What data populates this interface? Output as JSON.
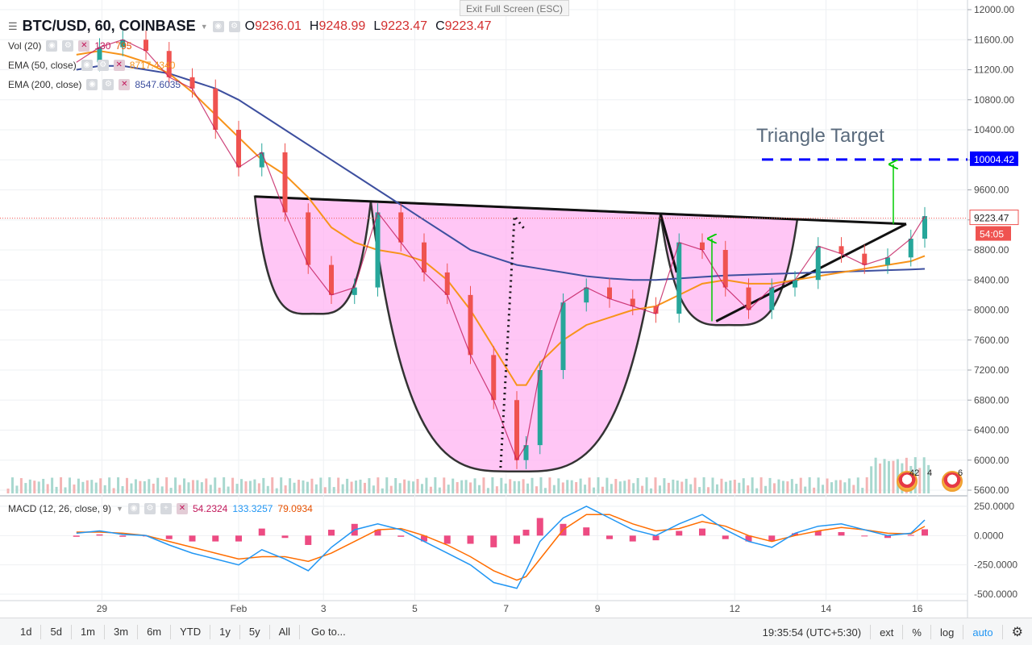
{
  "window": {
    "exit_hint": "Exit Full Screen (ESC)"
  },
  "legend": {
    "symbol": "BTC/USD, 60, COINBASE",
    "ohlc": [
      {
        "label": "O",
        "value": "9236.01"
      },
      {
        "label": "H",
        "value": "9248.99"
      },
      {
        "label": "L",
        "value": "9223.47"
      },
      {
        "label": "C",
        "value": "9223.47"
      }
    ],
    "vol": {
      "label": "Vol (20)",
      "v1": "130",
      "v2": "795"
    },
    "ema50": {
      "label": "EMA (50, close)",
      "value": "8717.4340"
    },
    "ema200": {
      "label": "EMA (200, close)",
      "value": "8547.6035"
    },
    "macd": {
      "label": "MACD (12, 26, close, 9)",
      "hist": "54.2324",
      "macd": "133.3257",
      "signal": "79.0934"
    }
  },
  "colors": {
    "up": "#26a69a",
    "down": "#ef5350",
    "ema50": "#f7931a",
    "ema200": "#3d4f9f",
    "pattern_fill": "#ffb3f2",
    "target": "#0000ff",
    "arrow": "#00cc00",
    "macd_line": "#2196f3",
    "signal_line": "#ff6d00",
    "hist": "#e91e63"
  },
  "chart_data": {
    "type": "line",
    "title": "BTC/USD, 60, COINBASE",
    "x_ticks": [
      "29",
      "Feb",
      "3",
      "5",
      "7",
      "9",
      "12",
      "14",
      "16"
    ],
    "price_axis": {
      "ticks": [
        "12000.00",
        "11600.00",
        "11200.00",
        "10800.00",
        "10400.00",
        "10000.00",
        "9600.00",
        "9200.00",
        "8800.00",
        "8400.00",
        "8000.00",
        "7600.00",
        "7200.00",
        "6800.00",
        "6400.00",
        "6000.00",
        "5600.00"
      ],
      "range": [
        5600,
        12000
      ],
      "last_price": "9223.47",
      "countdown": "54:05",
      "target_price": "10004.42"
    },
    "macd_axis": {
      "ticks": [
        "250.0000",
        "0.0000",
        "-250.0000",
        "-500.0000"
      ],
      "range": [
        -500,
        250
      ]
    },
    "annotation": "Triangle Target",
    "price_path_days": [
      -3.5,
      -3,
      -2.5,
      -2,
      -1.5,
      -1,
      -0.5,
      0,
      0.5,
      1,
      1.5,
      2,
      2.5,
      3,
      3.5,
      4,
      4.5,
      5,
      5.5,
      6,
      6.2,
      6.5,
      7,
      7.5,
      8,
      8.5,
      9,
      9.5,
      10,
      10.5,
      11,
      11.5,
      12,
      12.5,
      13,
      13.5,
      14,
      14.5,
      14.8
    ],
    "price_path_values": [
      11300,
      11500,
      11600,
      11450,
      11100,
      10950,
      10400,
      9900,
      10100,
      9300,
      8600,
      8200,
      8300,
      9300,
      8900,
      8500,
      8200,
      7400,
      6800,
      6000,
      6200,
      7200,
      8100,
      8300,
      8150,
      8050,
      7950,
      8900,
      8800,
      8300,
      8000,
      8300,
      8400,
      8850,
      8750,
      8600,
      8700,
      8950,
      9250
    ],
    "ema50_values": [
      11400,
      11450,
      11400,
      11300,
      11150,
      10900,
      10600,
      10300,
      10000,
      9800,
      9500,
      9100,
      8900,
      8800,
      8750,
      8650,
      8400,
      8000,
      7500,
      7000,
      7000,
      7300,
      7600,
      7800,
      7900,
      8000,
      8050,
      8200,
      8350,
      8400,
      8350,
      8350,
      8400,
      8450,
      8500,
      8550,
      8600,
      8650,
      8720
    ],
    "ema200_values": [
      11200,
      11250,
      11250,
      11200,
      11150,
      11050,
      10950,
      10800,
      10600,
      10400,
      10200,
      10000,
      9800,
      9600,
      9400,
      9200,
      9000,
      8800,
      8700,
      8600,
      8580,
      8550,
      8500,
      8450,
      8420,
      8400,
      8400,
      8420,
      8440,
      8460,
      8470,
      8480,
      8490,
      8500,
      8510,
      8520,
      8530,
      8540,
      8548
    ],
    "macd_values": [
      20,
      40,
      10,
      0,
      -80,
      -150,
      -200,
      -250,
      -120,
      -200,
      -300,
      -100,
      50,
      100,
      50,
      -50,
      -150,
      -250,
      -400,
      -450,
      -300,
      -50,
      150,
      250,
      150,
      50,
      0,
      100,
      180,
      50,
      -50,
      -100,
      20,
      80,
      100,
      50,
      0,
      20,
      133
    ],
    "signal_values": [
      30,
      30,
      20,
      0,
      -50,
      -100,
      -150,
      -200,
      -180,
      -180,
      -220,
      -150,
      -50,
      50,
      60,
      0,
      -80,
      -180,
      -300,
      -380,
      -350,
      -200,
      50,
      180,
      180,
      100,
      40,
      60,
      120,
      80,
      0,
      -50,
      0,
      40,
      70,
      50,
      20,
      15,
      79
    ]
  },
  "bottom_bar": {
    "timeframes": [
      "1d",
      "5d",
      "1m",
      "3m",
      "6m",
      "YTD",
      "1y",
      "5y",
      "All"
    ],
    "goto": "Go to...",
    "time": "19:35:54 (UTC+5:30)",
    "ext": "ext",
    "percent": "%",
    "log": "log",
    "auto": "auto"
  },
  "badges": {
    "b1": "42",
    "b2": "4",
    "b3": "6"
  }
}
